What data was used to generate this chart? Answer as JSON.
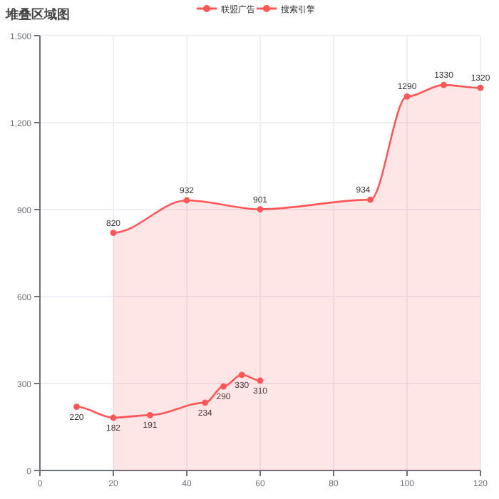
{
  "chart_data": {
    "type": "line",
    "title": "堆叠区域图",
    "legend": "top",
    "grid": true,
    "marker": "circle",
    "data_labels": true,
    "xlim": [
      0,
      120
    ],
    "xticks": [
      0,
      20,
      40,
      60,
      80,
      100,
      120
    ],
    "ylim": [
      0,
      1500
    ],
    "yticks": [
      0,
      300,
      600,
      900,
      {
        "value": 1200,
        "label": "1,200"
      },
      {
        "value": 1500,
        "label": "1,500"
      }
    ],
    "series": [
      {
        "name": "联盟广告",
        "type": "line",
        "color": "#ff5757",
        "x": [
          10,
          20,
          30,
          45,
          50,
          55,
          60
        ],
        "values": [
          220,
          182,
          191,
          234,
          290,
          330,
          310
        ]
      },
      {
        "name": "搜索引擎",
        "type": "area",
        "color": "#ff5757",
        "x": [
          20,
          40,
          60,
          90,
          100,
          110,
          120
        ],
        "values": [
          820,
          932,
          901,
          934,
          1290,
          1330,
          1320
        ]
      }
    ]
  }
}
